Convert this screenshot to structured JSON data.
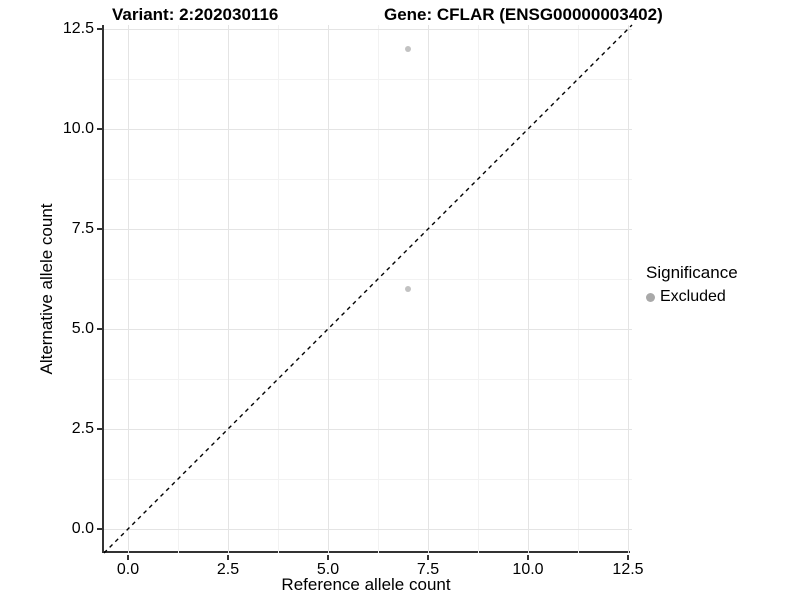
{
  "chart_data": {
    "type": "scatter",
    "title_left": "Variant: 2:202030116",
    "title_right": "Gene: CFLAR (ENSG00000003402)",
    "xlabel": "Reference allele count",
    "ylabel": "Alternative allele count",
    "xlim": [
      -0.6,
      12.6
    ],
    "ylim": [
      -0.6,
      12.6
    ],
    "major_ticks": [
      0,
      2.5,
      5,
      7.5,
      10,
      12.5
    ],
    "minor_ticks": [
      1.25,
      3.75,
      6.25,
      8.75,
      11.25
    ],
    "x_tick_labels": [
      "0.0",
      "2.5",
      "5.0",
      "7.5",
      "10.0",
      "12.5"
    ],
    "y_tick_labels": [
      "0.0",
      "2.5",
      "5.0",
      "7.5",
      "10.0",
      "12.5"
    ],
    "grid": {
      "major_color": "#e4e4e4",
      "minor_color": "#f2f2f2",
      "on": true
    },
    "points": [
      {
        "x": 7,
        "y": 12,
        "series": "Excluded"
      },
      {
        "x": 7,
        "y": 6,
        "series": "Excluded"
      }
    ],
    "point_color": "#c2c2c2",
    "identity_line": {
      "style": "dashed",
      "color": "#000000",
      "from": [
        -0.6,
        -0.6
      ],
      "to": [
        12.6,
        12.6
      ]
    },
    "legend": {
      "title": "Significance",
      "position": "right",
      "items": [
        {
          "label": "Excluded",
          "color": "#a9a9a9",
          "marker": "circle"
        }
      ]
    }
  }
}
